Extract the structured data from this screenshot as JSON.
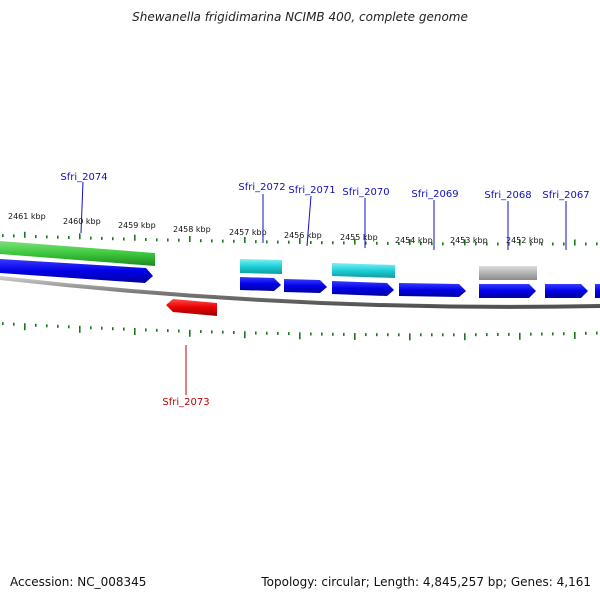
{
  "header": {
    "title": "Shewanella frigidimarina NCIMB 400, complete genome"
  },
  "footer": {
    "accession": "Accession: NC_008345",
    "stats": "Topology: circular; Length: 4,845,257 bp; Genes: 4,161"
  },
  "colors": {
    "forward_cds": "#0000e8",
    "reverse_cds": "#e80000",
    "green_feature": "#3cc83c",
    "cyan_feature": "#1ecfd6",
    "gray_feature": "#b4b4b4",
    "backbone": "#8a8a8a",
    "tick": "#1a7a1a",
    "forward_label": "#1010c0",
    "reverse_label": "#c00000"
  },
  "scale": {
    "unit": "kbp",
    "labels": [
      "2461 kbp",
      "2460 kbp",
      "2459 kbp",
      "2458 kbp",
      "2457 kbp",
      "2456 kbp",
      "2455 kbp",
      "2454 kbp",
      "2453 kbp",
      "2452 kbp"
    ]
  },
  "genes": [
    {
      "locus": "Sfri_2074",
      "strand": "forward",
      "label_shown": true
    },
    {
      "locus": "Sfri_2073",
      "strand": "reverse",
      "label_shown": true
    },
    {
      "locus": "Sfri_2072",
      "strand": "forward",
      "label_shown": true
    },
    {
      "locus": "Sfri_2071",
      "strand": "forward",
      "label_shown": true
    },
    {
      "locus": "Sfri_2070",
      "strand": "forward",
      "label_shown": true
    },
    {
      "locus": "Sfri_2069",
      "strand": "forward",
      "label_shown": true
    },
    {
      "locus": "Sfri_2068",
      "strand": "forward",
      "label_shown": true
    },
    {
      "locus": "Sfri_2067",
      "strand": "forward",
      "label_shown": true
    },
    {
      "locus": "",
      "strand": "forward",
      "label_shown": false
    }
  ]
}
